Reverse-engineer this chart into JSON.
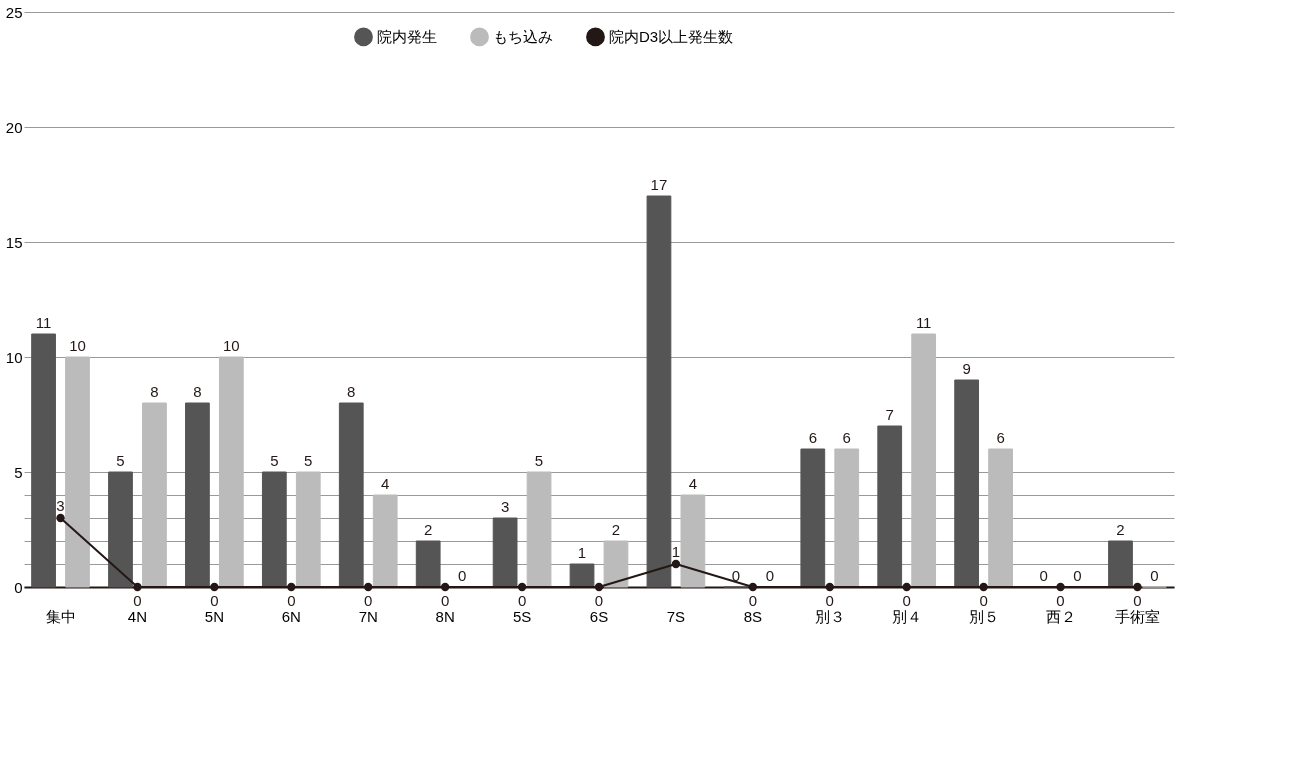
{
  "chart_data": {
    "type": "bar",
    "categories": [
      "集中",
      "4N",
      "5N",
      "6N",
      "7N",
      "8N",
      "5S",
      "6S",
      "7S",
      "8S",
      "別３",
      "別４",
      "別５",
      "西２",
      "手術室"
    ],
    "series": [
      {
        "name": "院内発生",
        "color": "#555555",
        "values": [
          11,
          5,
          8,
          5,
          8,
          2,
          3,
          1,
          17,
          0,
          6,
          7,
          9,
          0,
          2
        ]
      },
      {
        "name": "もち込み",
        "color": "#bbbbbb",
        "values": [
          10,
          8,
          10,
          5,
          4,
          0,
          5,
          2,
          4,
          0,
          6,
          11,
          6,
          0,
          0
        ]
      },
      {
        "name": "院内D3以上発生数",
        "color": "#231815",
        "type": "line",
        "marker": "circle",
        "values": [
          3,
          0,
          0,
          0,
          0,
          0,
          0,
          0,
          1,
          0,
          0,
          0,
          0,
          0,
          0
        ]
      }
    ],
    "ylim": [
      0,
      25
    ],
    "yticks": [
      0,
      {
        "value": 1,
        "label": null
      },
      {
        "value": 2,
        "label": null
      },
      {
        "value": 3,
        "label": null
      },
      {
        "value": 4,
        "label": null
      },
      5,
      10,
      15,
      20,
      25
    ],
    "grid": "y",
    "legend": "top",
    "data_labels": true
  }
}
